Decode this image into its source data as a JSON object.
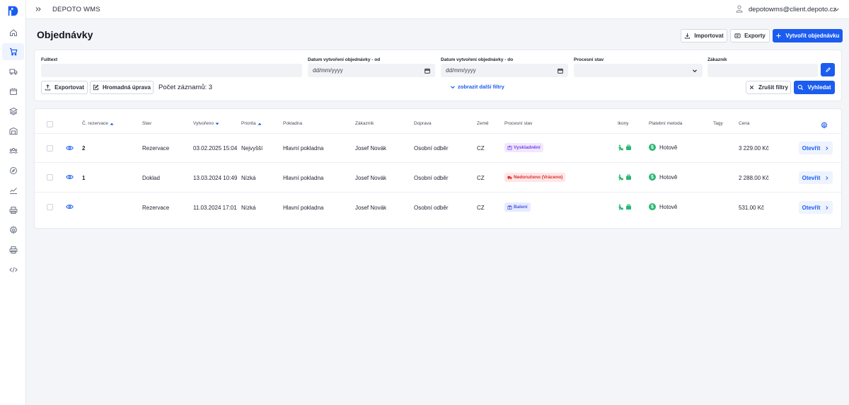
{
  "app": {
    "title": "DEPOTO WMS",
    "user_email": "depotowms@client.depoto.cz"
  },
  "sidebar": {
    "items": [
      {
        "name": "home-icon"
      },
      {
        "name": "cart-icon",
        "active": true
      },
      {
        "name": "truck-icon"
      },
      {
        "name": "package-icon"
      },
      {
        "name": "layers-icon"
      },
      {
        "name": "warehouse-icon"
      },
      {
        "name": "users-icon"
      },
      {
        "name": "compass-icon"
      },
      {
        "name": "chart-icon"
      },
      {
        "name": "printer-icon"
      },
      {
        "name": "gear-icon"
      },
      {
        "name": "printer-icon"
      },
      {
        "name": "code-icon"
      }
    ]
  },
  "page": {
    "title": "Objednávky",
    "import_label": "Importovat",
    "exports_label": "Exporty",
    "create_label": "Vytvořit objednávku"
  },
  "filters": {
    "fulltext_label": "Fulltext",
    "date_from_label": "Datum vytvoření objednávky - od",
    "date_from_placeholder": "dd/mm/yyyy",
    "date_to_label": "Datum vytvoření objednávky - do",
    "date_to_placeholder": "dd/mm/yyyy",
    "process_state_label": "Procesní stav",
    "customer_label": "Zákazník",
    "export_label": "Exportovat",
    "bulk_edit_label": "Hromadná úprava",
    "record_count": "Počet záznamů: 3",
    "more_filters": "zobrazit další filtry",
    "clear_label": "Zrušit filtry",
    "search_label": "Vyhledat"
  },
  "table": {
    "headers": {
      "reservation": "Č. rezervace",
      "state": "Stav",
      "created": "Vytvořeno",
      "priority": "Priorita",
      "register": "Pokladna",
      "customer": "Zákazník",
      "shipping": "Doprava",
      "country": "Země",
      "process_state": "Procesní stav",
      "icons": "Ikony",
      "payment": "Platební metoda",
      "tags": "Tagy",
      "price": "Cena"
    },
    "open_label": "Otevřít",
    "rows": [
      {
        "reservation": "2",
        "state": "Rezervace",
        "created": "03.02.2025 15:04",
        "priority": "Nejvyšší",
        "register": "Hlavní pokladna",
        "customer": "Josef Novák",
        "shipping": "Osobní odběr",
        "country": "CZ",
        "process_state": "Vyskladnění",
        "process_color": "#7b3fe4",
        "process_bg": "#f0e8ff",
        "payment": "Hotově",
        "price": "3 229.00 Kč"
      },
      {
        "reservation": "1",
        "state": "Doklad",
        "created": "13.03.2024 10:49",
        "priority": "Nízká",
        "register": "Hlavní pokladna",
        "customer": "Josef Novák",
        "shipping": "Osobní odběr",
        "country": "CZ",
        "process_state": "Nedoručeno (Vráceno)",
        "process_color": "#d92d2d",
        "process_bg": "#ffe6e6",
        "payment": "Hotově",
        "price": "2 288.00 Kč"
      },
      {
        "reservation": "",
        "state": "Rezervace",
        "created": "11.03.2024 17:01",
        "priority": "Nízká",
        "register": "Hlavní pokladna",
        "customer": "Josef Novák",
        "shipping": "Osobní odběr",
        "country": "CZ",
        "process_state": "Balení",
        "process_color": "#4a5bd6",
        "process_bg": "#e7ebff",
        "payment": "Hotově",
        "price": "531.00 Kč"
      }
    ]
  },
  "colors": {
    "accent": "#1b5cf0",
    "success": "#2bb673"
  }
}
